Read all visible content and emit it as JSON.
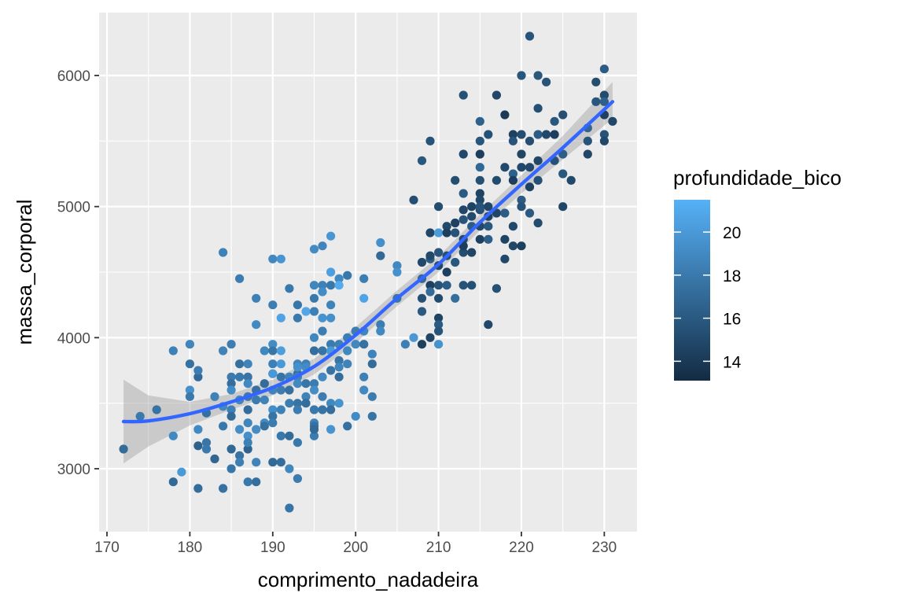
{
  "chart_data": {
    "type": "scatter",
    "title": "",
    "xlabel": "comprimento_nadadeira",
    "ylabel": "massa_corporal",
    "xlim": [
      169.05,
      233.95
    ],
    "ylim": [
      2520,
      6480
    ],
    "x_ticks": [
      170,
      180,
      190,
      200,
      210,
      220,
      230
    ],
    "y_ticks": [
      3000,
      4000,
      5000,
      6000
    ],
    "grid": true,
    "legend": {
      "title": "profundidade_bico",
      "placement": "right",
      "type": "colorbar",
      "range": [
        13.1,
        21.5
      ],
      "ticks": [
        14,
        16,
        18,
        20
      ],
      "color_low": "#132B43",
      "color_high": "#56B1F7"
    },
    "colors": {
      "panel_background": "#EBEBEB",
      "grid": "#FFFFFF",
      "smooth_line": "#3366FF",
      "confidence_band": "#999999"
    },
    "smooth": {
      "x": [
        172,
        175,
        180,
        185,
        190,
        195,
        200,
        205,
        210,
        215,
        220,
        225,
        231
      ],
      "y": [
        3360,
        3365,
        3420,
        3510,
        3620,
        3780,
        4020,
        4300,
        4560,
        4880,
        5170,
        5450,
        5800
      ],
      "band_lower": [
        3040,
        3170,
        3330,
        3450,
        3560,
        3720,
        3960,
        4240,
        4500,
        4820,
        5100,
        5360,
        5670
      ],
      "band_upper": [
        3680,
        3560,
        3510,
        3570,
        3680,
        3840,
        4080,
        4360,
        4620,
        4940,
        5240,
        5540,
        5950
      ]
    },
    "points": [
      [
        172,
        3150,
        17.1
      ],
      [
        174,
        3400,
        18.0
      ],
      [
        176,
        3450,
        17.6
      ],
      [
        178,
        3250,
        19.0
      ],
      [
        178,
        3900,
        18.5
      ],
      [
        178,
        2900,
        17.0
      ],
      [
        179,
        2975,
        20.0
      ],
      [
        180,
        3950,
        18.8
      ],
      [
        180,
        3800,
        17.5
      ],
      [
        180,
        3600,
        19.5
      ],
      [
        180,
        3550,
        18.0
      ],
      [
        181,
        3700,
        17.0
      ],
      [
        181,
        3175,
        16.5
      ],
      [
        181,
        2850,
        17.2
      ],
      [
        181,
        3300,
        19.0
      ],
      [
        181,
        3750,
        18.2
      ],
      [
        182,
        3200,
        17.8
      ],
      [
        182,
        3150,
        18.0
      ],
      [
        182,
        3425,
        17.4
      ],
      [
        183,
        3550,
        18.5
      ],
      [
        183,
        3075,
        16.8
      ],
      [
        184,
        3900,
        18.6
      ],
      [
        184,
        4650,
        18.5
      ],
      [
        184,
        3325,
        17.9
      ],
      [
        184,
        2850,
        17.5
      ],
      [
        184,
        3475,
        18.9
      ],
      [
        185,
        3700,
        18.1
      ],
      [
        185,
        3650,
        17.3
      ],
      [
        185,
        3600,
        19.2
      ],
      [
        185,
        3450,
        18.4
      ],
      [
        185,
        3400,
        17.0
      ],
      [
        185,
        3150,
        16.9
      ],
      [
        185,
        3000,
        17.8
      ],
      [
        185,
        3950,
        18.3
      ],
      [
        186,
        4450,
        18.2
      ],
      [
        186,
        3800,
        17.4
      ],
      [
        186,
        3700,
        17.9
      ],
      [
        186,
        3525,
        18.8
      ],
      [
        186,
        3300,
        19.3
      ],
      [
        186,
        3100,
        17.6
      ],
      [
        186,
        3050,
        18.4
      ],
      [
        187,
        3800,
        18.6
      ],
      [
        187,
        3700,
        17.7
      ],
      [
        187,
        3650,
        19.0
      ],
      [
        187,
        3550,
        18.0
      ],
      [
        187,
        3450,
        17.2
      ],
      [
        187,
        3350,
        18.8
      ],
      [
        187,
        3250,
        19.4
      ],
      [
        187,
        3150,
        16.7
      ],
      [
        187,
        2900,
        17.9
      ],
      [
        187,
        3200,
        18.5
      ],
      [
        188,
        4300,
        18.4
      ],
      [
        188,
        4100,
        19.0
      ],
      [
        188,
        3600,
        17.5
      ],
      [
        188,
        3525,
        18.1
      ],
      [
        188,
        3300,
        19.2
      ],
      [
        188,
        2900,
        17.3
      ],
      [
        188,
        3050,
        18.7
      ],
      [
        189,
        3650,
        17.1
      ],
      [
        189,
        3525,
        18.6
      ],
      [
        189,
        3350,
        19.1
      ],
      [
        189,
        3325,
        17.4
      ],
      [
        189,
        3900,
        18.9
      ],
      [
        190,
        4600,
        18.9
      ],
      [
        190,
        4250,
        18.3
      ],
      [
        190,
        3950,
        19.2
      ],
      [
        190,
        3900,
        17.8
      ],
      [
        190,
        3800,
        18.4
      ],
      [
        190,
        3725,
        17.2
      ],
      [
        190,
        3600,
        18.7
      ],
      [
        190,
        3450,
        19.3
      ],
      [
        190,
        3400,
        17.6
      ],
      [
        190,
        3350,
        18.1
      ],
      [
        190,
        3050,
        17.0
      ],
      [
        190,
        3725,
        19.9
      ],
      [
        191,
        4600,
        19.7
      ],
      [
        191,
        4150,
        20.6
      ],
      [
        191,
        3900,
        20.3
      ],
      [
        191,
        3800,
        20.0
      ],
      [
        191,
        3700,
        17.7
      ],
      [
        191,
        3450,
        18.5
      ],
      [
        191,
        3250,
        17.9
      ],
      [
        191,
        3050,
        17.3
      ],
      [
        191,
        3600,
        18.2
      ],
      [
        192,
        4375,
        17.9
      ],
      [
        192,
        3700,
        18.6
      ],
      [
        192,
        3600,
        17.4
      ],
      [
        192,
        3500,
        18.3
      ],
      [
        192,
        3250,
        17.1
      ],
      [
        192,
        3000,
        18.9
      ],
      [
        192,
        2700,
        17.7
      ],
      [
        193,
        4250,
        17.8
      ],
      [
        193,
        4150,
        18.0
      ],
      [
        193,
        3800,
        18.7
      ],
      [
        193,
        3725,
        17.3
      ],
      [
        193,
        3700,
        18.5
      ],
      [
        193,
        3650,
        19.0
      ],
      [
        193,
        3500,
        17.6
      ],
      [
        193,
        3450,
        18.2
      ],
      [
        193,
        3200,
        17.9
      ],
      [
        193,
        2925,
        18.1
      ],
      [
        193,
        3775,
        19.4
      ],
      [
        194,
        4200,
        20.8
      ],
      [
        194,
        3800,
        18.4
      ],
      [
        194,
        3650,
        17.8
      ],
      [
        194,
        3550,
        18.6
      ],
      [
        194,
        3500,
        17.2
      ],
      [
        194,
        3775,
        19.1
      ],
      [
        195,
        4675,
        19.1
      ],
      [
        195,
        4400,
        18.8
      ],
      [
        195,
        4300,
        18.0
      ],
      [
        195,
        4200,
        18.4
      ],
      [
        195,
        4000,
        18.9
      ],
      [
        195,
        3900,
        17.3
      ],
      [
        195,
        3650,
        18.2
      ],
      [
        195,
        3600,
        19.3
      ],
      [
        195,
        3450,
        17.9
      ],
      [
        195,
        3350,
        18.6
      ],
      [
        195,
        3325,
        17.5
      ],
      [
        195,
        3250,
        18.1
      ],
      [
        195,
        3300,
        17.0
      ],
      [
        196,
        4700,
        18.7
      ],
      [
        196,
        4400,
        18.5
      ],
      [
        196,
        4150,
        19.6
      ],
      [
        196,
        4050,
        18.3
      ],
      [
        196,
        3900,
        17.7
      ],
      [
        196,
        3700,
        19.0
      ],
      [
        196,
        3550,
        18.2
      ],
      [
        196,
        3450,
        17.6
      ],
      [
        196,
        4350,
        19.2
      ],
      [
        197,
        4775,
        19.8
      ],
      [
        197,
        4500,
        20.4
      ],
      [
        197,
        4400,
        17.9
      ],
      [
        197,
        4250,
        18.6
      ],
      [
        197,
        4150,
        19.4
      ],
      [
        197,
        3950,
        18.1
      ],
      [
        197,
        3750,
        17.6
      ],
      [
        197,
        3500,
        18.9
      ],
      [
        197,
        3300,
        19.7
      ],
      [
        197,
        3450,
        17.3
      ],
      [
        197,
        3900,
        20.0
      ],
      [
        198,
        4450,
        19.0
      ],
      [
        198,
        4400,
        21.1
      ],
      [
        198,
        3950,
        18.4
      ],
      [
        198,
        3825,
        17.7
      ],
      [
        198,
        3775,
        18.8
      ],
      [
        198,
        3700,
        17.2
      ],
      [
        198,
        3500,
        19.6
      ],
      [
        199,
        4475,
        17.9
      ],
      [
        199,
        4000,
        18.3
      ],
      [
        199,
        3900,
        18.9
      ],
      [
        199,
        3325,
        17.4
      ],
      [
        199,
        3800,
        18.6
      ],
      [
        200,
        4050,
        18.2
      ],
      [
        200,
        3950,
        18.9
      ],
      [
        200,
        3400,
        19.1
      ],
      [
        201,
        4450,
        18.3
      ],
      [
        201,
        4300,
        20.7
      ],
      [
        201,
        4050,
        18.8
      ],
      [
        201,
        3950,
        17.5
      ],
      [
        201,
        3700,
        18.4
      ],
      [
        201,
        3600,
        19.0
      ],
      [
        202,
        3875,
        18.6
      ],
      [
        202,
        3800,
        17.1
      ],
      [
        202,
        3550,
        18.1
      ],
      [
        202,
        3400,
        17.6
      ],
      [
        203,
        4725,
        19.4
      ],
      [
        203,
        4625,
        17.0
      ],
      [
        203,
        4100,
        18.2
      ],
      [
        203,
        4050,
        19.0
      ],
      [
        205,
        4550,
        18.9
      ],
      [
        205,
        4500,
        19.5
      ],
      [
        205,
        4300,
        17.8
      ],
      [
        206,
        3950,
        18.4
      ],
      [
        207,
        5050,
        15.3
      ],
      [
        207,
        4000,
        19.9
      ],
      [
        208,
        5350,
        15.9
      ],
      [
        208,
        4575,
        15.0
      ],
      [
        208,
        4450,
        16.9
      ],
      [
        208,
        4300,
        15.4
      ],
      [
        208,
        4200,
        16.0
      ],
      [
        208,
        3950,
        14.4
      ],
      [
        209,
        5500,
        15.6
      ],
      [
        209,
        4800,
        14.8
      ],
      [
        209,
        4600,
        16.3
      ],
      [
        209,
        4400,
        14.5
      ],
      [
        209,
        4350,
        17.1
      ],
      [
        209,
        4000,
        14.7
      ],
      [
        209,
        4625,
        15.0
      ],
      [
        210,
        5000,
        15.2
      ],
      [
        210,
        4800,
        20.2
      ],
      [
        210,
        4650,
        15.8
      ],
      [
        210,
        4550,
        14.9
      ],
      [
        210,
        4400,
        15.6
      ],
      [
        210,
        4300,
        15.1
      ],
      [
        210,
        4150,
        14.6
      ],
      [
        210,
        4100,
        16.0
      ],
      [
        210,
        3950,
        19.6
      ],
      [
        210,
        4050,
        15.7
      ],
      [
        211,
        4850,
        15.0
      ],
      [
        211,
        4800,
        14.4
      ],
      [
        211,
        4625,
        15.4
      ],
      [
        211,
        4500,
        14.3
      ],
      [
        211,
        4400,
        16.2
      ],
      [
        212,
        5200,
        15.2
      ],
      [
        212,
        4800,
        15.6
      ],
      [
        212,
        4875,
        14.5
      ],
      [
        212,
        4300,
        17.3
      ],
      [
        212,
        4575,
        15.9
      ],
      [
        213,
        5850,
        15.5
      ],
      [
        213,
        5400,
        15.0
      ],
      [
        213,
        5100,
        16.1
      ],
      [
        213,
        4975,
        14.8
      ],
      [
        213,
        4900,
        15.7
      ],
      [
        213,
        4750,
        14.9
      ],
      [
        213,
        4650,
        15.2
      ],
      [
        213,
        4400,
        15.6
      ],
      [
        213,
        4700,
        14.2
      ],
      [
        214,
        5000,
        14.6
      ],
      [
        214,
        4925,
        15.1
      ],
      [
        214,
        4850,
        16.2
      ],
      [
        214,
        4650,
        14.7
      ],
      [
        214,
        4400,
        15.5
      ],
      [
        215,
        5650,
        16.5
      ],
      [
        215,
        5500,
        15.8
      ],
      [
        215,
        5400,
        14.2
      ],
      [
        215,
        5300,
        16.9
      ],
      [
        215,
        5200,
        15.4
      ],
      [
        215,
        5100,
        14.6
      ],
      [
        215,
        5050,
        14.9
      ],
      [
        215,
        4975,
        15.3
      ],
      [
        215,
        4750,
        14.5
      ],
      [
        215,
        4850,
        15.0
      ],
      [
        215,
        5000,
        15.7
      ],
      [
        216,
        5550,
        15.5
      ],
      [
        216,
        5000,
        14.8
      ],
      [
        216,
        4850,
        15.9
      ],
      [
        216,
        4750,
        16.3
      ],
      [
        216,
        4925,
        14.5
      ],
      [
        216,
        4100,
        14.9
      ],
      [
        217,
        5850,
        14.8
      ],
      [
        217,
        5200,
        15.1
      ],
      [
        217,
        4375,
        15.4
      ],
      [
        217,
        4950,
        14.7
      ],
      [
        218,
        5700,
        14.1
      ],
      [
        218,
        5300,
        15.0
      ],
      [
        218,
        4950,
        16.2
      ],
      [
        218,
        4750,
        14.6
      ],
      [
        218,
        4600,
        14.9
      ],
      [
        219,
        5550,
        14.5
      ],
      [
        219,
        5500,
        15.7
      ],
      [
        219,
        5250,
        16.4
      ],
      [
        219,
        5200,
        14.2
      ],
      [
        219,
        4850,
        15.0
      ],
      [
        219,
        4700,
        14.8
      ],
      [
        220,
        6000,
        15.8
      ],
      [
        220,
        5550,
        15.2
      ],
      [
        220,
        5300,
        14.9
      ],
      [
        220,
        5050,
        16.1
      ],
      [
        220,
        5000,
        15.6
      ],
      [
        220,
        4700,
        14.4
      ],
      [
        220,
        5400,
        14.7
      ],
      [
        221,
        6300,
        15.7
      ],
      [
        221,
        5500,
        15.3
      ],
      [
        221,
        5150,
        14.5
      ],
      [
        221,
        4950,
        16.0
      ],
      [
        221,
        5300,
        15.0
      ],
      [
        222,
        6000,
        15.9
      ],
      [
        222,
        5750,
        15.4
      ],
      [
        222,
        5550,
        16.2
      ],
      [
        222,
        5350,
        14.8
      ],
      [
        222,
        5200,
        15.5
      ],
      [
        222,
        4875,
        15.1
      ],
      [
        223,
        5950,
        15.6
      ],
      [
        223,
        5550,
        14.9
      ],
      [
        224,
        5650,
        15.8
      ],
      [
        224,
        5550,
        14.3
      ],
      [
        224,
        5350,
        15.5
      ],
      [
        225,
        5700,
        15.4
      ],
      [
        225,
        5400,
        16.3
      ],
      [
        225,
        5250,
        15.9
      ],
      [
        225,
        5000,
        14.7
      ],
      [
        226,
        5200,
        15.0
      ],
      [
        228,
        5600,
        16.8
      ],
      [
        228,
        5500,
        15.7
      ],
      [
        228,
        5400,
        14.8
      ],
      [
        229,
        5950,
        15.2
      ],
      [
        229,
        5800,
        15.8
      ],
      [
        230,
        6050,
        16.2
      ],
      [
        230,
        5850,
        15.1
      ],
      [
        230,
        5800,
        16.4
      ],
      [
        230,
        5700,
        14.5
      ],
      [
        230,
        5550,
        15.6
      ],
      [
        230,
        5500,
        14.9
      ],
      [
        231,
        5650,
        14.8
      ]
    ]
  }
}
